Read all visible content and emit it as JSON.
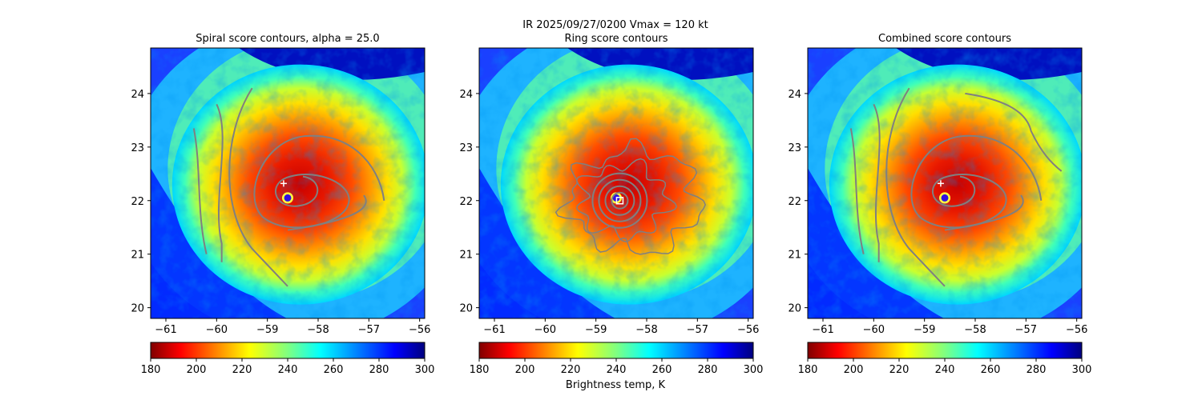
{
  "chart_data": {
    "type": "heatmap",
    "suptitle": "IR  2025/09/27/0200    Vmax = 120 kt",
    "panels": [
      {
        "title": "Spiral score contours, alpha = 25.0",
        "contours": "spiral",
        "marker": "plus"
      },
      {
        "title": "Ring score contours",
        "contours": "ring",
        "marker": "square"
      },
      {
        "title": "Combined score contours",
        "contours": "combined",
        "marker": "plus"
      }
    ],
    "x_ticks": [
      -61,
      -60,
      -59,
      -58,
      -57,
      -56
    ],
    "y_ticks": [
      20,
      21,
      22,
      23,
      24
    ],
    "xlim": [
      -61.3,
      -55.9
    ],
    "ylim": [
      19.8,
      24.85
    ],
    "colorbar": {
      "cmap": "jet_r",
      "range": [
        180,
        300
      ],
      "ticks": [
        180,
        200,
        220,
        240,
        260,
        280,
        300
      ],
      "label": "Brightness temp, K"
    },
    "storm_center": {
      "lon": -58.6,
      "lat": 22.05
    },
    "plus_marker": {
      "lon": -58.68,
      "lat": 22.32
    },
    "square_marker": {
      "lon": -58.53,
      "lat": 22.0
    },
    "contour_color": "#808080"
  }
}
